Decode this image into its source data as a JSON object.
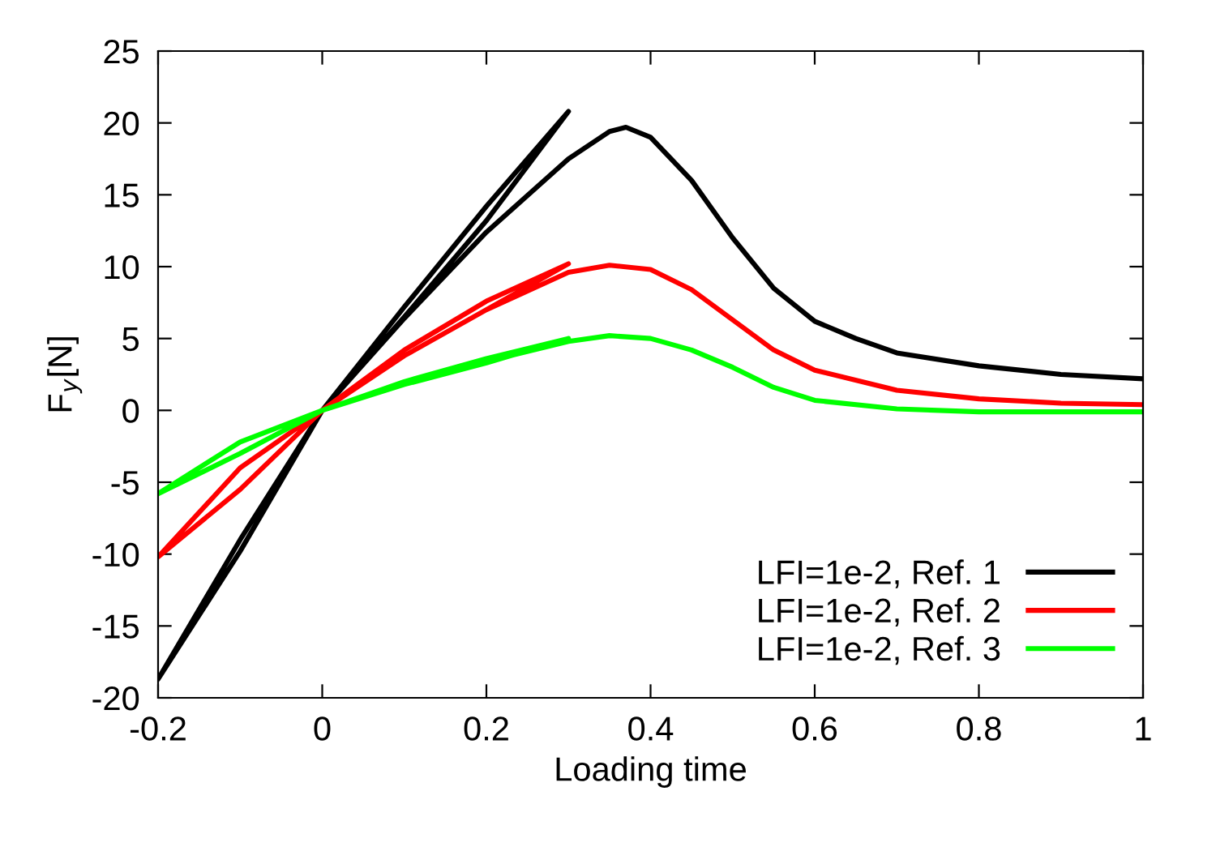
{
  "chart_data": {
    "type": "line",
    "xlabel": "Loading time",
    "ylabel": "F$_{y}$[N]",
    "xlim": [
      -0.2,
      1
    ],
    "xticks": [
      -0.2,
      0,
      0.2,
      0.4,
      0.6,
      0.8,
      1
    ],
    "ylim": [
      -20,
      25
    ],
    "yticks": [
      -20,
      -15,
      -10,
      -5,
      0,
      5,
      10,
      15,
      20,
      25
    ],
    "grid": false,
    "legend": "bottom right",
    "marker": "none",
    "line_style": "solid",
    "series": [
      {
        "name": "LFI=1e-2, Ref. 1",
        "color": "#000000",
        "x": [
          0,
          0.1,
          0.2,
          0.3,
          0.2,
          0.1,
          0,
          -0.1,
          -0.2,
          -0.1,
          0,
          0.1,
          0.2,
          0.3,
          0.35,
          0.37,
          0.4,
          0.45,
          0.5,
          0.55,
          0.6,
          0.65,
          0.7,
          0.8,
          0.9,
          1.0
        ],
        "values": [
          0,
          7.2,
          14.2,
          20.8,
          13.2,
          6.5,
          0,
          -9.0,
          -18.7,
          -9.8,
          0,
          6.4,
          12.4,
          17.5,
          19.4,
          19.7,
          19.0,
          16.0,
          12.0,
          8.5,
          6.2,
          5.0,
          4.0,
          3.1,
          2.5,
          2.2
        ]
      },
      {
        "name": "LFI=1e-2, Ref. 2",
        "color": "#ff0000",
        "x": [
          0,
          0.1,
          0.2,
          0.3,
          0.2,
          0.1,
          0,
          -0.1,
          -0.2,
          -0.1,
          0,
          0.1,
          0.2,
          0.3,
          0.35,
          0.4,
          0.45,
          0.5,
          0.55,
          0.6,
          0.7,
          0.8,
          0.9,
          1.0
        ],
        "values": [
          0,
          4.2,
          7.6,
          10.2,
          7.0,
          3.8,
          0,
          -4.0,
          -10.2,
          -5.5,
          0,
          3.8,
          7.0,
          9.6,
          10.1,
          9.8,
          8.4,
          6.3,
          4.2,
          2.8,
          1.4,
          0.8,
          0.5,
          0.4
        ]
      },
      {
        "name": "LFI=1e-2, Ref. 3",
        "color": "#00ff00",
        "x": [
          0,
          0.1,
          0.2,
          0.3,
          0.2,
          0.1,
          0,
          -0.1,
          -0.2,
          -0.1,
          0,
          0.1,
          0.2,
          0.3,
          0.35,
          0.4,
          0.45,
          0.5,
          0.55,
          0.6,
          0.7,
          0.8,
          0.9,
          1.0
        ],
        "values": [
          0,
          2.0,
          3.6,
          5.0,
          3.3,
          1.8,
          0,
          -2.2,
          -5.8,
          -3.0,
          0,
          1.8,
          3.4,
          4.8,
          5.2,
          5.0,
          4.2,
          3.0,
          1.6,
          0.7,
          0.1,
          -0.1,
          -0.1,
          -0.1
        ]
      }
    ]
  }
}
